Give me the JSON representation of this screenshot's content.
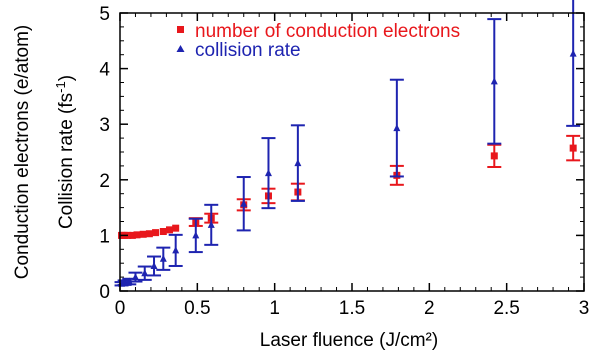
{
  "chart_data": {
    "type": "scatter",
    "xlabel": "Laser fluence (J/cm²)",
    "ylabel_primary": "Collision rate (fs",
    "ylabel_primary_sup": "-1",
    "ylabel_primary_close": ")",
    "ylabel_secondary": "Conduction electrons (e/atom)",
    "xlim": [
      0,
      3
    ],
    "ylim": [
      0,
      5
    ],
    "x_ticks": [
      "0",
      "0.5",
      "1",
      "1.5",
      "2",
      "2.5",
      "3"
    ],
    "y_ticks": [
      "0",
      "1",
      "2",
      "3",
      "4",
      "5"
    ],
    "legend_position": "top-left",
    "grid": false,
    "series": [
      {
        "name": "number of conduction electrons",
        "color": "#e8171c",
        "marker": "square",
        "error_bars": true,
        "points": [
          {
            "x": 0.01,
            "y": 1.0,
            "err": 0
          },
          {
            "x": 0.02,
            "y": 1.0,
            "err": 0
          },
          {
            "x": 0.03,
            "y": 1.0,
            "err": 0
          },
          {
            "x": 0.05,
            "y": 1.0,
            "err": 0
          },
          {
            "x": 0.08,
            "y": 1.0,
            "err": 0
          },
          {
            "x": 0.11,
            "y": 1.01,
            "err": 0
          },
          {
            "x": 0.15,
            "y": 1.02,
            "err": 0
          },
          {
            "x": 0.19,
            "y": 1.03,
            "err": 0
          },
          {
            "x": 0.23,
            "y": 1.05,
            "err": 0
          },
          {
            "x": 0.28,
            "y": 1.07,
            "err": 0
          },
          {
            "x": 0.32,
            "y": 1.1,
            "err": 0
          },
          {
            "x": 0.36,
            "y": 1.13,
            "err": 0
          },
          {
            "x": 0.49,
            "y": 1.24,
            "err": 0.07
          },
          {
            "x": 0.59,
            "y": 1.31,
            "err": 0.08
          },
          {
            "x": 0.8,
            "y": 1.55,
            "err": 0.1
          },
          {
            "x": 0.96,
            "y": 1.71,
            "err": 0.13
          },
          {
            "x": 1.15,
            "y": 1.78,
            "err": 0.15
          },
          {
            "x": 1.79,
            "y": 2.08,
            "err": 0.17
          },
          {
            "x": 2.42,
            "y": 2.43,
            "err": 0.2
          },
          {
            "x": 2.93,
            "y": 2.57,
            "err": 0.22
          }
        ]
      },
      {
        "name": "collision rate",
        "color": "#1e24b0",
        "marker": "triangle",
        "error_bars": true,
        "points": [
          {
            "x": 0.01,
            "y": 0.13,
            "err": 0.03
          },
          {
            "x": 0.03,
            "y": 0.15,
            "err": 0.04
          },
          {
            "x": 0.06,
            "y": 0.17,
            "err": 0.05
          },
          {
            "x": 0.1,
            "y": 0.25,
            "err": 0.08
          },
          {
            "x": 0.16,
            "y": 0.32,
            "err": 0.12
          },
          {
            "x": 0.22,
            "y": 0.45,
            "err": 0.17
          },
          {
            "x": 0.28,
            "y": 0.58,
            "err": 0.2
          },
          {
            "x": 0.36,
            "y": 0.73,
            "err": 0.28
          },
          {
            "x": 0.49,
            "y": 1.0,
            "err": 0.3
          },
          {
            "x": 0.59,
            "y": 1.19,
            "err": 0.36
          },
          {
            "x": 0.8,
            "y": 1.57,
            "err": 0.48
          },
          {
            "x": 0.96,
            "y": 2.12,
            "err": 0.63
          },
          {
            "x": 1.15,
            "y": 2.3,
            "err": 0.68
          },
          {
            "x": 1.79,
            "y": 2.93,
            "err": 0.87
          },
          {
            "x": 2.42,
            "y": 3.77,
            "err": 1.12
          },
          {
            "x": 2.93,
            "y": 4.27,
            "err": 1.3
          }
        ]
      }
    ]
  }
}
